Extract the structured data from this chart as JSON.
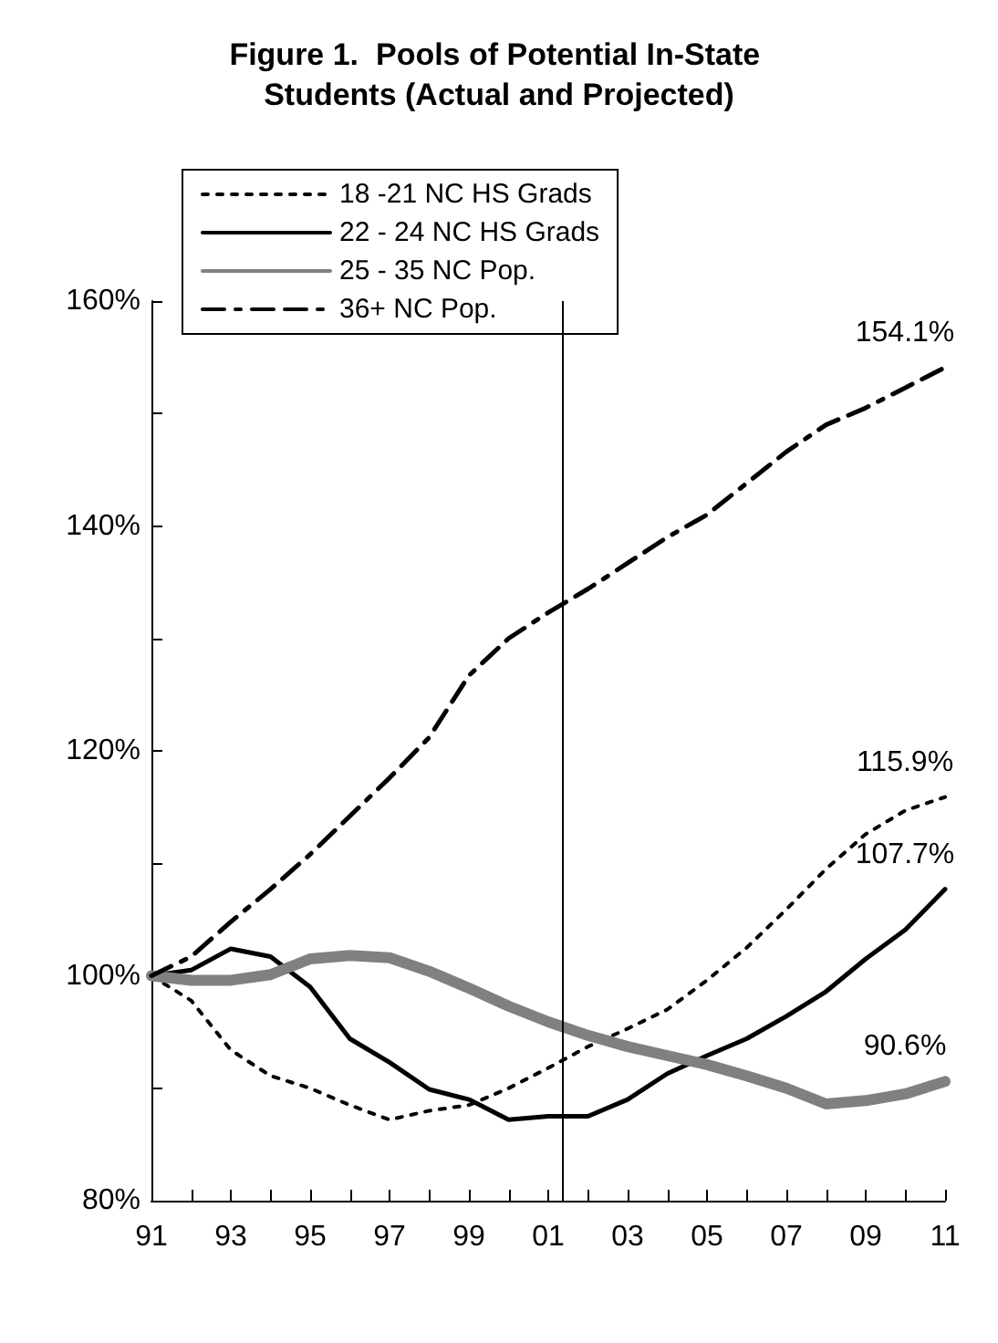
{
  "chart_data": {
    "type": "line",
    "title": "Figure 1.  Pools of Potential In-State Students (Actual and Projected)",
    "x": [
      1991,
      1992,
      1993,
      1994,
      1995,
      1996,
      1997,
      1998,
      1999,
      2000,
      2001,
      2002,
      2003,
      2004,
      2005,
      2006,
      2007,
      2008,
      2009,
      2010,
      2011
    ],
    "series": [
      {
        "name": "18 -21 NC HS Grads",
        "color": "#000000",
        "line_style": "dotted",
        "values": [
          100,
          97.8,
          93.4,
          91.1,
          90.0,
          88.5,
          87.2,
          88.0,
          88.5,
          90.0,
          91.8,
          93.7,
          95.3,
          97.0,
          99.6,
          102.5,
          105.9,
          109.5,
          112.6,
          114.7,
          115.9
        ],
        "value_labels": [
          null,
          null,
          null,
          null,
          null,
          null,
          null,
          null,
          null,
          null,
          null,
          null,
          null,
          null,
          null,
          null,
          null,
          null,
          null,
          null,
          "115.9%"
        ]
      },
      {
        "name": "22 - 24 NC HS Grads",
        "color": "#000000",
        "line_style": "solid",
        "values": [
          100,
          100.5,
          102.4,
          101.7,
          99.0,
          94.4,
          92.3,
          89.9,
          89.0,
          87.2,
          87.5,
          87.5,
          89.0,
          91.3,
          92.9,
          94.4,
          96.4,
          98.6,
          101.5,
          104.1,
          107.7
        ],
        "value_labels": [
          null,
          null,
          null,
          null,
          null,
          null,
          null,
          null,
          null,
          null,
          null,
          null,
          null,
          null,
          null,
          null,
          null,
          null,
          null,
          null,
          "107.7%"
        ]
      },
      {
        "name": "25 - 35 NC Pop.",
        "color": "#808080",
        "line_style": "solid",
        "values": [
          100,
          99.6,
          99.6,
          100.1,
          101.5,
          101.8,
          101.6,
          100.4,
          98.9,
          97.3,
          95.9,
          94.7,
          93.7,
          92.9,
          92.1,
          91.1,
          90.0,
          88.6,
          88.9,
          89.5,
          90.6
        ],
        "value_labels": [
          null,
          null,
          null,
          null,
          null,
          null,
          null,
          null,
          null,
          null,
          null,
          null,
          null,
          null,
          null,
          null,
          null,
          null,
          null,
          null,
          "90.6%"
        ]
      },
      {
        "name": "36+ NC Pop.",
        "color": "#000000",
        "line_style": "dashed",
        "values": [
          100,
          101.7,
          104.8,
          107.7,
          110.8,
          114.2,
          117.6,
          121.2,
          126.7,
          130.0,
          132.3,
          134.4,
          136.7,
          139.0,
          141.0,
          143.8,
          146.6,
          149.0,
          150.5,
          152.3,
          154.1
        ],
        "value_labels": [
          null,
          null,
          null,
          null,
          null,
          null,
          null,
          null,
          null,
          null,
          null,
          null,
          null,
          null,
          null,
          null,
          null,
          null,
          null,
          null,
          "154.1%"
        ]
      }
    ],
    "xlim": [
      1991,
      2011
    ],
    "xticks": [
      {
        "value": 1991,
        "label": "91"
      },
      {
        "value": 1992,
        "label": null
      },
      {
        "value": 1993,
        "label": "93"
      },
      {
        "value": 1994,
        "label": null
      },
      {
        "value": 1995,
        "label": "95"
      },
      {
        "value": 1996,
        "label": null
      },
      {
        "value": 1997,
        "label": "97"
      },
      {
        "value": 1998,
        "label": null
      },
      {
        "value": 1999,
        "label": "99"
      },
      {
        "value": 2000,
        "label": null
      },
      {
        "value": 2001,
        "label": "01"
      },
      {
        "value": 2002,
        "label": null
      },
      {
        "value": 2003,
        "label": "03"
      },
      {
        "value": 2004,
        "label": null
      },
      {
        "value": 2005,
        "label": "05"
      },
      {
        "value": 2006,
        "label": null
      },
      {
        "value": 2007,
        "label": "07"
      },
      {
        "value": 2008,
        "label": null
      },
      {
        "value": 2009,
        "label": "09"
      },
      {
        "value": 2010,
        "label": null
      },
      {
        "value": 2011,
        "label": "11"
      }
    ],
    "ylim": [
      80,
      160
    ],
    "yticks": [
      {
        "value": 80,
        "label": "80%"
      },
      {
        "value": 90,
        "label": null
      },
      {
        "value": 100,
        "label": "100%"
      },
      {
        "value": 110,
        "label": null
      },
      {
        "value": 120,
        "label": "120%"
      },
      {
        "value": 130,
        "label": null
      },
      {
        "value": 140,
        "label": "140%"
      },
      {
        "value": 150,
        "label": null
      },
      {
        "value": 160,
        "label": "160%"
      }
    ],
    "ref_lines": [
      {
        "axis": "x",
        "value": 2001.35,
        "color": "#000000"
      }
    ],
    "grid": false,
    "legend": "top left",
    "marker": "none"
  }
}
